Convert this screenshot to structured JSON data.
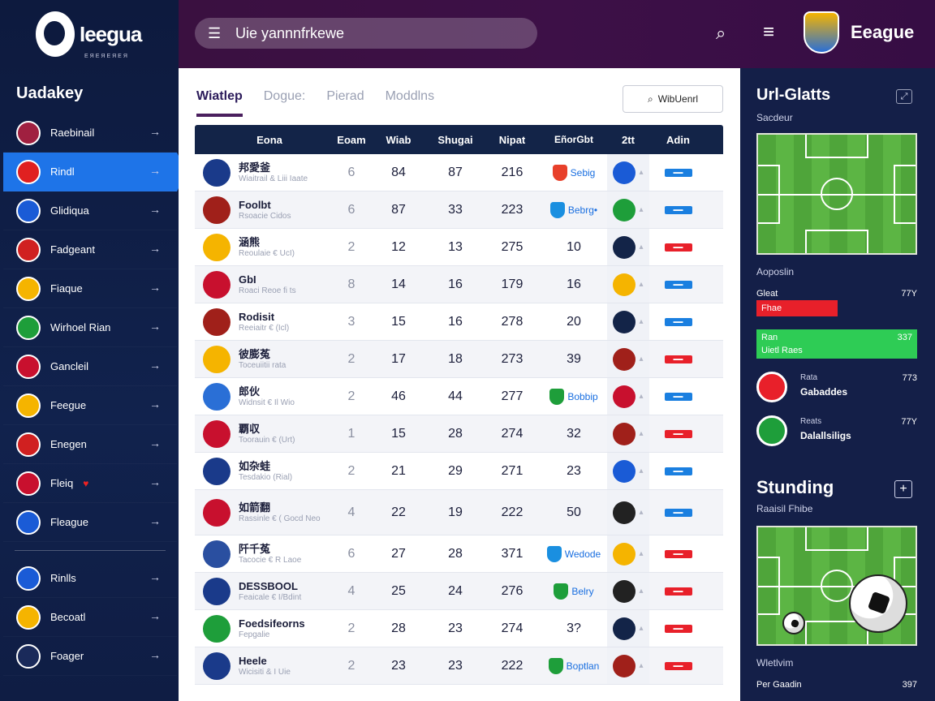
{
  "sidebar": {
    "logo_name": "Ieegua",
    "logo_sub": "ЕЯЕЯЕЯЕЯ",
    "title": "Uadakey",
    "items": [
      {
        "label": "Raebinail",
        "color": "#a02040",
        "active": false
      },
      {
        "label": "Rindl",
        "color": "#e02020",
        "active": true
      },
      {
        "label": "Glidiqua",
        "color": "#1a5bd6",
        "active": false
      },
      {
        "label": "Fadgeant",
        "color": "#d02020",
        "active": false
      },
      {
        "label": "Fiaque",
        "color": "#f5b400",
        "active": false
      },
      {
        "label": "Wirhoel Rian",
        "color": "#1e9e3a",
        "active": false
      },
      {
        "label": "Gancleil",
        "color": "#c8102e",
        "active": false
      },
      {
        "label": "Feegue",
        "color": "#f5b400",
        "active": false
      },
      {
        "label": "Enegen",
        "color": "#d02020",
        "active": false
      },
      {
        "label": "Fleiq",
        "color": "#c8102e",
        "active": false,
        "heart": true
      },
      {
        "label": "Fleague",
        "color": "#1a5bd6",
        "active": false
      }
    ],
    "items2": [
      {
        "label": "Rinlls",
        "color": "#1a5bd6"
      },
      {
        "label": "Becoatl",
        "color": "#f5b400"
      },
      {
        "label": "Foager",
        "color": "#1a2a5a"
      }
    ]
  },
  "topbar": {
    "search_text": "Uie yannnfrkewe",
    "brand": "Eeague"
  },
  "main": {
    "tabs": [
      "Wiatlep",
      "Dogue:",
      "Pierad",
      "Moddlns"
    ],
    "filter_label": "WibUenrl",
    "headers": [
      "Eona",
      "Eoam",
      "Wiab",
      "Shugai",
      "Nipat",
      "EñorGbt",
      "2tt",
      "Adin"
    ],
    "rows": [
      {
        "name": "邦愛釜",
        "sub": "Wiaitrail & Liii Iaate",
        "flag": "#1a3a8a",
        "a": "6",
        "b": "84",
        "c": "87",
        "d": "216",
        "e": "Sebig",
        "e_color": "#e8402a",
        "em": "#1a5bd6",
        "badge": "#1a7fe0"
      },
      {
        "name": "Foolbt",
        "sub": "Rsoacie Cidos",
        "flag": "#a0201a",
        "a": "6",
        "b": "87",
        "c": "33",
        "d": "223",
        "e": "Bebrg•",
        "e_color": "#1a8fe0",
        "em": "#1e9e3a",
        "badge": "#1a7fe0"
      },
      {
        "name": "涵熊",
        "sub": "Reoulaie € UcI)",
        "flag": "#f5b400",
        "a": "2",
        "b": "12",
        "c": "13",
        "d": "275",
        "e": "10",
        "e_color": "",
        "em": "#132448",
        "badge": "#e8202a"
      },
      {
        "name": "GbI",
        "sub": "Roaci Reoe fi ts",
        "flag": "#c8102e",
        "a": "8",
        "b": "14",
        "c": "16",
        "d": "179",
        "e": "16",
        "e_color": "",
        "em": "#f5b400",
        "badge": "#1a7fe0"
      },
      {
        "name": "Rodisit",
        "sub": "Reeiaitr € (Icl)",
        "flag": "#a0201a",
        "a": "3",
        "b": "15",
        "c": "16",
        "d": "278",
        "e": "20",
        "e_color": "",
        "em": "#132448",
        "badge": "#1a7fe0"
      },
      {
        "name": "彼膨菟",
        "sub": "Toceuiitii rata",
        "flag": "#f5b400",
        "a": "2",
        "b": "17",
        "c": "18",
        "d": "273",
        "e": "39",
        "e_color": "",
        "em": "#a0201a",
        "badge": "#e8202a"
      },
      {
        "name": "郎伙",
        "sub": "Widnsit € Il Wio",
        "flag": "#2a6fd6",
        "a": "2",
        "b": "46",
        "c": "44",
        "d": "277",
        "e": "Bobbip",
        "e_color": "#1e9e3a",
        "em": "#c8102e",
        "badge": "#1a7fe0"
      },
      {
        "name": "覇収",
        "sub": "Toorauin € (Urt)",
        "flag": "#c8102e",
        "a": "1",
        "b": "15",
        "c": "28",
        "d": "274",
        "e": "32",
        "e_color": "",
        "em": "#a0201a",
        "badge": "#e8202a"
      },
      {
        "name": "如杂蛙",
        "sub": "Tesdakio (Rial)",
        "flag": "#1a3a8a",
        "a": "2",
        "b": "21",
        "c": "29",
        "d": "271",
        "e": "23",
        "e_color": "",
        "em": "#1a5bd6",
        "badge": "#1a7fe0"
      },
      {
        "name": "如箭翻",
        "sub": "Rassinle € ( Gocd Neo",
        "flag": "#c8102e",
        "a": "4",
        "b": "22",
        "c": "19",
        "d": "222",
        "e": "50",
        "e_color": "",
        "em": "#222222",
        "badge": "#1a7fe0"
      },
      {
        "name": "阡千菟",
        "sub": "Tacocie € R Laoe",
        "flag": "#2a4fa0",
        "a": "6",
        "b": "27",
        "c": "28",
        "d": "371",
        "e": "Wedode",
        "e_color": "#1a8fe0",
        "em": "#f5b400",
        "badge": "#e8202a"
      },
      {
        "name": "DESSBOOL",
        "sub": "Feaicale € I/Bdint",
        "flag": "#1a3a8a",
        "a": "4",
        "b": "25",
        "c": "24",
        "d": "276",
        "e": "Belry",
        "e_color": "#1e9e3a",
        "em": "#222222",
        "badge": "#e8202a"
      },
      {
        "name": "Foedsifeorns",
        "sub": "Fepgalie",
        "flag": "#1e9e3a",
        "a": "2",
        "b": "28",
        "c": "23",
        "d": "274",
        "e": "3?",
        "e_color": "",
        "em": "#132448",
        "badge": "#e8202a"
      },
      {
        "name": "Heele",
        "sub": "Wicisiti & I Uie",
        "flag": "#1a3a8a",
        "a": "2",
        "b": "23",
        "c": "23",
        "d": "222",
        "e": "Boptlan",
        "e_color": "#1e9e3a",
        "em": "#a0201a",
        "badge": "#e8202a"
      }
    ]
  },
  "right": {
    "title": "Url-Glatts",
    "sub": "Sacdeur",
    "label1": "Aoposlin",
    "stat1_label": "Gleat",
    "stat1_val": "77Y",
    "red_label": "Fhae",
    "green_label": "Ran",
    "green_sub": "Uietl Raes",
    "green_val": "337",
    "team1_small": "Rata",
    "team1_name": "Gabaddes",
    "team1_val": "773",
    "team2_small": "Reats",
    "team2_name": "Dalallsiligs",
    "team2_val": "77Y",
    "title2": "Stunding",
    "sub2": "Raaisil Fhibe",
    "label2": "Wletlvim",
    "bottom_label": "Per Gaadin",
    "bottom_val": "397"
  }
}
